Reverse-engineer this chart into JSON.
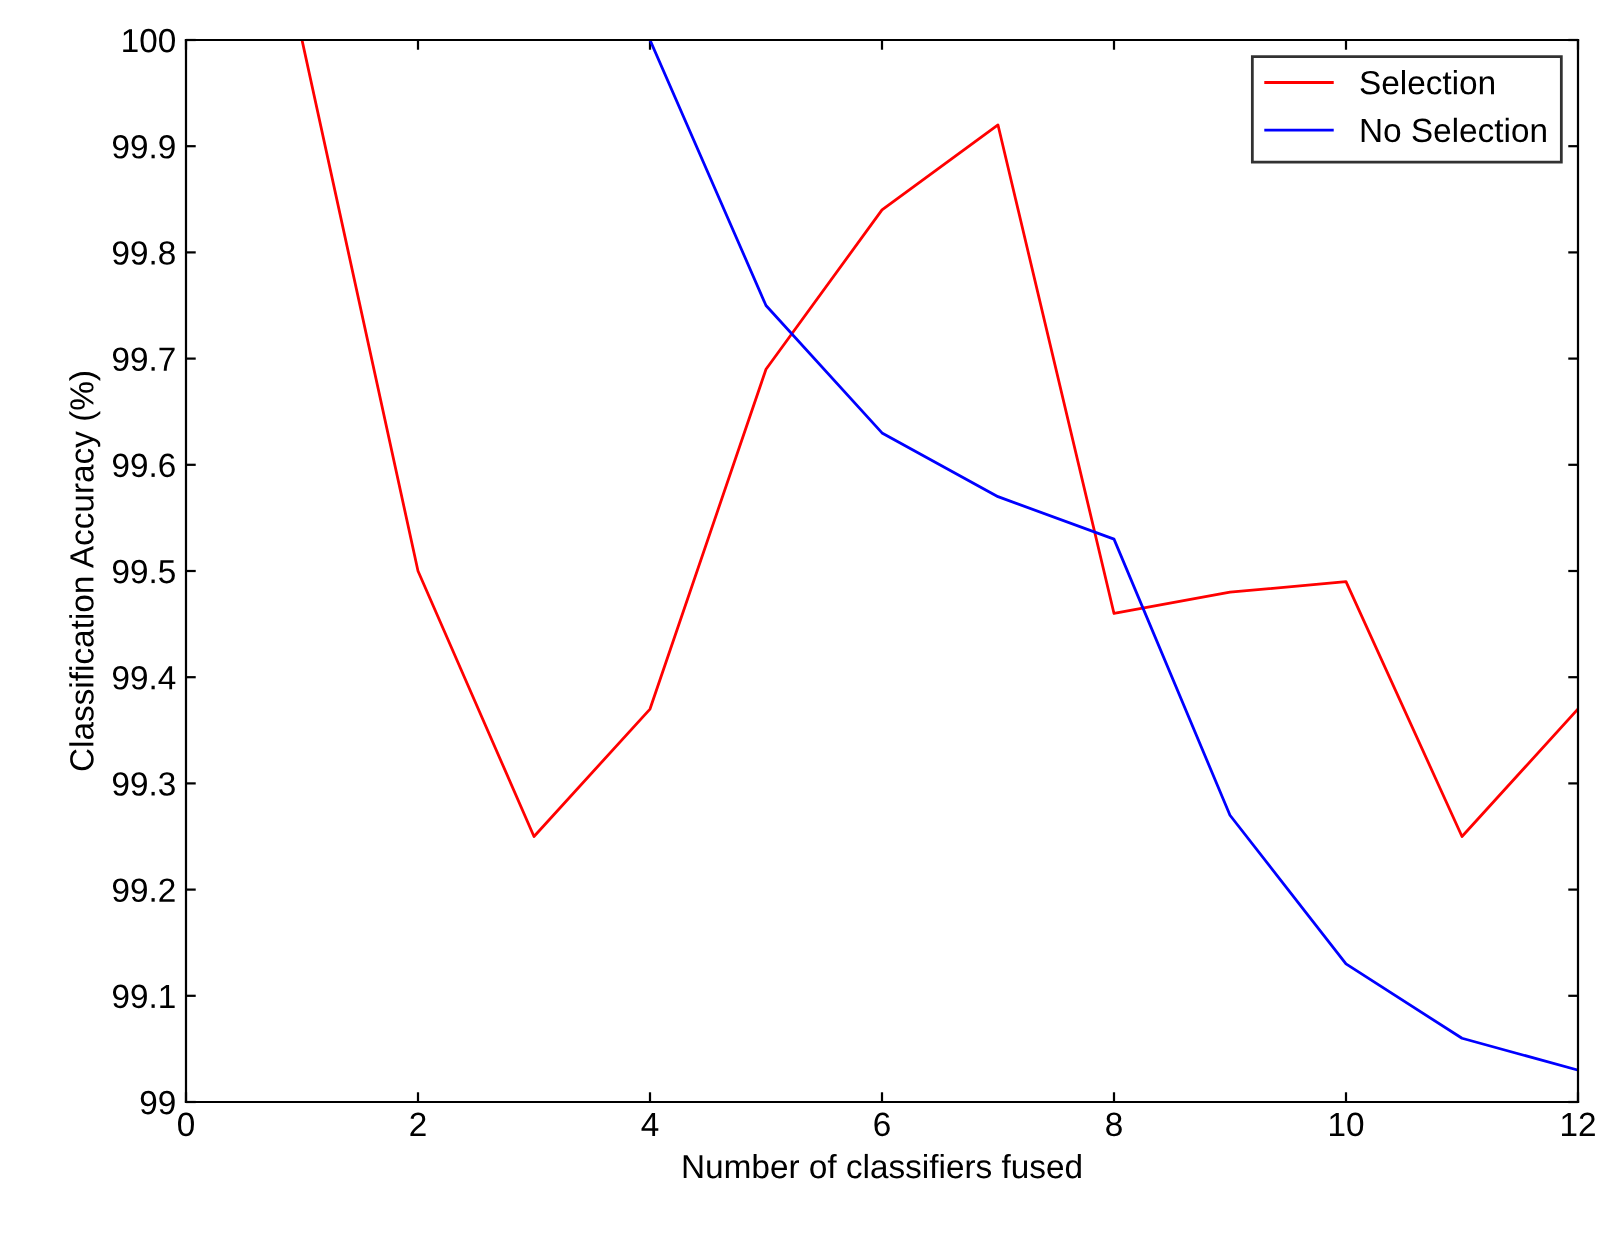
{
  "chart_data": {
    "type": "line",
    "xlabel": "Number of classifiers fused",
    "ylabel": "Classification Accuracy (%)",
    "series": [
      {
        "name": "Selection",
        "color": "#ff0000",
        "x": [
          1,
          2,
          3,
          4,
          5,
          6,
          7,
          8,
          9,
          10,
          11,
          12
        ],
        "values": [
          100,
          99.5,
          99.25,
          99.37,
          99.69,
          99.84,
          99.92,
          99.46,
          99.48,
          99.49,
          99.25,
          99.37
        ]
      },
      {
        "name": "No Selection",
        "color": "#0000ff",
        "x": [
          4,
          5,
          6,
          7,
          8,
          9,
          10,
          11,
          12
        ],
        "values": [
          100,
          99.75,
          99.63,
          99.57,
          99.53,
          99.27,
          99.13,
          99.06,
          99.03
        ]
      }
    ],
    "xlim": [
      0,
      12
    ],
    "xticks": [
      0,
      2,
      4,
      6,
      8,
      10,
      12
    ],
    "ylim": [
      99,
      100
    ],
    "yticks": [
      99,
      99.1,
      99.2,
      99.3,
      99.4,
      99.5,
      99.6,
      99.7,
      99.8,
      99.9,
      100
    ],
    "legend": "top right",
    "grid": false,
    "marker": "none",
    "line_style": "solid"
  }
}
